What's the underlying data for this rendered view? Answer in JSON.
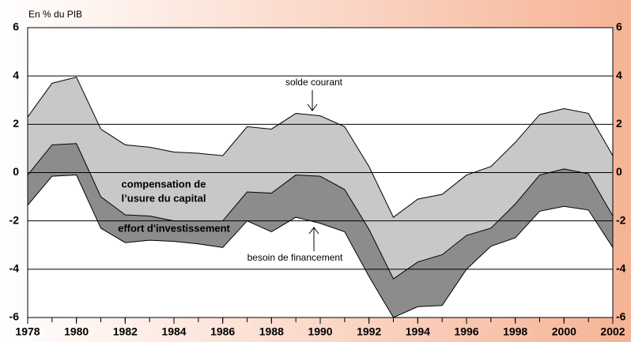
{
  "chart_data": {
    "type": "area",
    "ylabel": "En % du PIB",
    "x": [
      1978,
      1979,
      1980,
      1981,
      1982,
      1983,
      1984,
      1985,
      1986,
      1987,
      1988,
      1989,
      1990,
      1991,
      1992,
      1993,
      1994,
      1995,
      1996,
      1997,
      1998,
      1999,
      2000,
      2001,
      2002
    ],
    "series": [
      {
        "name": "solde courant",
        "color": "#c8c8c8",
        "values": [
          2.3,
          3.7,
          3.95,
          1.8,
          1.15,
          1.05,
          0.85,
          0.8,
          0.7,
          1.9,
          1.8,
          2.45,
          2.35,
          1.9,
          0.25,
          -1.85,
          -1.1,
          -0.9,
          -0.1,
          0.25,
          1.25,
          2.4,
          2.65,
          2.45,
          0.7
        ]
      },
      {
        "color": "#8c8c8c",
        "values": [
          -0.1,
          1.15,
          1.2,
          -1.0,
          -1.75,
          -1.8,
          -2.0,
          -2.0,
          -2.0,
          -0.8,
          -0.85,
          -0.1,
          -0.15,
          -0.7,
          -2.35,
          -4.4,
          -3.7,
          -3.4,
          -2.6,
          -2.3,
          -1.3,
          -0.1,
          0.15,
          -0.05,
          -1.8
        ]
      },
      {
        "name": "besoin de financement",
        "values": [
          -1.35,
          -0.15,
          -0.1,
          -2.3,
          -2.9,
          -2.8,
          -2.85,
          -2.95,
          -3.1,
          -2.0,
          -2.45,
          -1.85,
          -2.1,
          -2.45,
          -4.3,
          -6.0,
          -5.55,
          -5.5,
          -4.0,
          -3.05,
          -2.7,
          -1.6,
          -1.4,
          -1.55,
          -3.1
        ]
      }
    ],
    "area_labels": [
      [
        "compensation de",
        "l’usure du capital"
      ],
      [
        "effort d'investissement"
      ]
    ],
    "xlim": [
      1978,
      2002
    ],
    "xticks": [
      1978,
      1980,
      1982,
      1984,
      1986,
      1988,
      1990,
      1992,
      1994,
      1996,
      1998,
      2000,
      2002
    ],
    "ylim": [
      -6,
      6
    ],
    "yticks": [
      -6,
      -4,
      -2,
      0,
      2,
      4,
      6
    ],
    "grid": true
  }
}
